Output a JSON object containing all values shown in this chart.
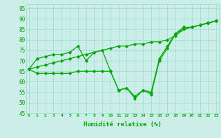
{
  "xlabel": "Humidité relative (%)",
  "bg_color": "#cceee8",
  "grid_color": "#99ddcc",
  "line_color": "#00aa00",
  "ylim": [
    45,
    97
  ],
  "yticks": [
    45,
    50,
    55,
    60,
    65,
    70,
    75,
    80,
    85,
    90,
    95
  ],
  "xlim": [
    -0.3,
    23.3
  ],
  "xticks": [
    0,
    1,
    2,
    3,
    4,
    5,
    6,
    7,
    8,
    9,
    10,
    11,
    12,
    13,
    14,
    15,
    16,
    17,
    18,
    19,
    20,
    21,
    22,
    23
  ],
  "series1": [
    66,
    64,
    64,
    64,
    64,
    64,
    65,
    65,
    65,
    65,
    65,
    56,
    57,
    52,
    56,
    54,
    70,
    76,
    83,
    86,
    86,
    87,
    88,
    89
  ],
  "series2": [
    66,
    71,
    72,
    73,
    73,
    74,
    77,
    70,
    74,
    75,
    65,
    56,
    57,
    53,
    56,
    55,
    71,
    77,
    83,
    85,
    86,
    87,
    88,
    89
  ],
  "series3": [
    66,
    67,
    68,
    69,
    70,
    71,
    72,
    73,
    74,
    75,
    76,
    77,
    77,
    78,
    78,
    79,
    79,
    80,
    82,
    85,
    86,
    87,
    88,
    89
  ]
}
